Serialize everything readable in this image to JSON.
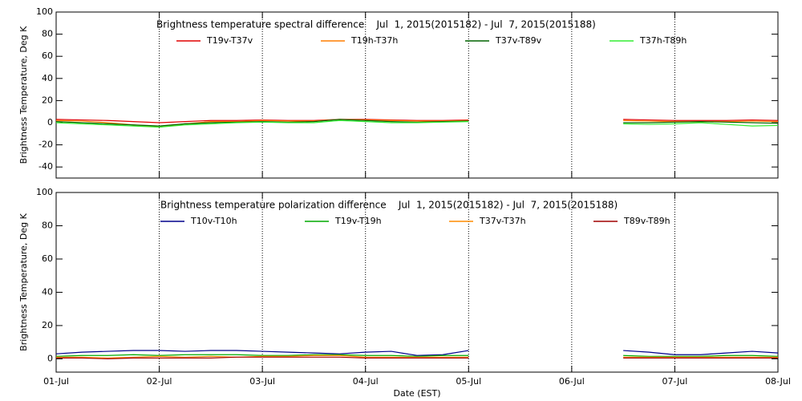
{
  "chart_data": [
    {
      "type": "line",
      "title": "Brightness temperature spectral difference    Jul  1, 2015(2015182) - Jul  7, 2015(2015188)",
      "ylabel": "Brightness Temperature, Deg K",
      "xlim": [
        0,
        7
      ],
      "xticks": [
        0,
        1,
        2,
        3,
        4,
        5,
        6,
        7
      ],
      "xgrid": true,
      "ylim": [
        -50,
        100
      ],
      "yticks": [
        -40,
        -20,
        0,
        20,
        40,
        60,
        80,
        100
      ],
      "x": [
        0,
        0.25,
        0.5,
        0.75,
        1,
        1.25,
        1.5,
        1.75,
        2,
        2.25,
        2.5,
        2.75,
        3,
        3.25,
        3.5,
        3.75,
        4,
        4.25,
        4.5,
        4.75,
        5,
        5.25,
        5.5,
        5.75,
        6,
        6.25,
        6.5,
        6.75,
        7
      ],
      "series": [
        {
          "name": "T19v-T37v",
          "color": "#e00000",
          "values": [
            3,
            2.5,
            2,
            1,
            0,
            1,
            2,
            2,
            2.5,
            2,
            2,
            3,
            3,
            2.5,
            2,
            2,
            2.5,
            null,
            null,
            null,
            null,
            null,
            3,
            2.5,
            2,
            2,
            2,
            2.5,
            2
          ]
        },
        {
          "name": "T19h-T37h",
          "color": "#ff7f00",
          "values": [
            2,
            1.5,
            0,
            -2,
            -4,
            -1,
            1,
            1,
            2,
            1.5,
            1.5,
            3,
            2.5,
            2,
            1.5,
            1.5,
            2,
            null,
            null,
            null,
            null,
            null,
            2,
            1.5,
            1,
            1,
            1,
            1.5,
            1
          ]
        },
        {
          "name": "T37v-T89v",
          "color": "#006400",
          "values": [
            1,
            0,
            -1,
            -2,
            -3,
            -1,
            0,
            0.5,
            1,
            0.5,
            1,
            3,
            2,
            1,
            0.5,
            1,
            1.5,
            null,
            null,
            null,
            null,
            null,
            0,
            0,
            0.5,
            1,
            0.5,
            0,
            -0.5
          ]
        },
        {
          "name": "T37h-T89h",
          "color": "#33ee33",
          "values": [
            0,
            -1,
            -2,
            -3,
            -4,
            -2,
            -1,
            0,
            0.5,
            0,
            0,
            2,
            1,
            0,
            0,
            0.5,
            1,
            null,
            null,
            null,
            null,
            null,
            -1,
            -1.5,
            -1,
            0,
            -1.5,
            -3,
            -2.5
          ]
        }
      ]
    },
    {
      "type": "line",
      "title": "Brightness temperature polarization difference    Jul  1, 2015(2015182) - Jul  7, 2015(2015188)",
      "ylabel": "Brightness Temperature, Deg K",
      "xlabel": "Date (EST)",
      "xlim": [
        0,
        7
      ],
      "xticks": [
        {
          "value": 0,
          "label": "01-Jul"
        },
        {
          "value": 1,
          "label": "02-Jul"
        },
        {
          "value": 2,
          "label": "03-Jul"
        },
        {
          "value": 3,
          "label": "04-Jul"
        },
        {
          "value": 4,
          "label": "05-Jul"
        },
        {
          "value": 5,
          "label": "06-Jul"
        },
        {
          "value": 6,
          "label": "07-Jul"
        },
        {
          "value": 7,
          "label": "08-Jul"
        }
      ],
      "xgrid": true,
      "ylim": [
        -8,
        100
      ],
      "yticks": [
        0,
        20,
        40,
        60,
        80,
        100
      ],
      "x": [
        0,
        0.25,
        0.5,
        0.75,
        1,
        1.25,
        1.5,
        1.75,
        2,
        2.25,
        2.5,
        2.75,
        3,
        3.25,
        3.5,
        3.75,
        4,
        4.25,
        4.5,
        4.75,
        5,
        5.25,
        5.5,
        5.75,
        6,
        6.25,
        6.5,
        6.75,
        7
      ],
      "series": [
        {
          "name": "T10v-T10h",
          "color": "#00008b",
          "values": [
            3,
            4,
            4.5,
            5,
            5,
            4.5,
            5,
            5,
            4.5,
            4,
            3.5,
            3,
            4,
            4.5,
            2,
            2.5,
            5,
            null,
            null,
            null,
            null,
            null,
            5,
            4,
            2.5,
            2.5,
            3.5,
            4.5,
            3.5
          ]
        },
        {
          "name": "T19v-T19h",
          "color": "#00aa00",
          "values": [
            1.5,
            2,
            2,
            2.5,
            2,
            2.5,
            2.5,
            2.5,
            2,
            2,
            2.5,
            2.5,
            2,
            2,
            1.5,
            2,
            2,
            null,
            null,
            null,
            null,
            null,
            2,
            1.5,
            1.5,
            1.5,
            2,
            2,
            1.5
          ]
        },
        {
          "name": "T37v-T37h",
          "color": "#ff8c00",
          "values": [
            1,
            1,
            0.5,
            1,
            1.5,
            1,
            1.5,
            1,
            1.5,
            1.5,
            2,
            2,
            1,
            1,
            1,
            1,
            1,
            null,
            null,
            null,
            null,
            null,
            1,
            1,
            1,
            1,
            1,
            1,
            1
          ]
        },
        {
          "name": "T89v-T89h",
          "color": "#a00000",
          "values": [
            0.5,
            0.5,
            0,
            0.5,
            0.5,
            0.5,
            0.5,
            1,
            1,
            1,
            1,
            1,
            0.5,
            0.5,
            0.5,
            0.5,
            0.5,
            null,
            null,
            null,
            null,
            null,
            0.5,
            0.5,
            0.5,
            0.5,
            0.5,
            0.5,
            0.5
          ]
        }
      ]
    }
  ]
}
